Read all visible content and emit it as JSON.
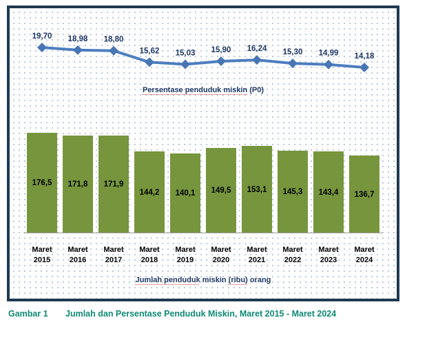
{
  "figure": {
    "caption_label": "Gambar 1",
    "caption_title": "Jumlah dan Persentase Penduduk Miskin, Maret 2015 - Maret 2024"
  },
  "line_title": {
    "segments": [
      {
        "text": "Persentase penduduk miskin",
        "underlined": true
      },
      {
        "text": " (P0)",
        "underlined": false
      }
    ]
  },
  "bar_title": {
    "segments": [
      {
        "text": "Jumlah penduduk",
        "underlined": true
      },
      {
        "text": " miskin ",
        "underlined": false
      },
      {
        "text": "(ribu)",
        "underlined": true
      },
      {
        "text": " orang",
        "underlined": false
      }
    ]
  },
  "colors": {
    "frame_border": "#1f3a52",
    "dot_grid": "#b7c9e2",
    "line_stroke": "#4c7ebf",
    "marker_fill": "#4876b4",
    "line_value_label": "#1f3864",
    "bar_fill": "#76953d",
    "bar_value_label": "#000000",
    "axis_line": "#9a9a9a",
    "caption_text": "#0e8a74"
  },
  "chart_data": [
    {
      "type": "line",
      "title": "Persentase penduduk miskin (P0)",
      "categories": [
        "Maret 2015",
        "Maret 2016",
        "Maret 2017",
        "Maret 2018",
        "Maret 2019",
        "Maret 2020",
        "Maret 2021",
        "Maret 2022",
        "Maret 2023",
        "Maret 2024"
      ],
      "values": [
        19.7,
        18.98,
        18.8,
        15.62,
        15.03,
        15.9,
        16.24,
        15.3,
        14.99,
        14.18
      ],
      "value_labels": [
        "19,70",
        "18,98",
        "18,80",
        "15,62",
        "15,03",
        "15,90",
        "16,24",
        "15,30",
        "14,99",
        "14,18"
      ],
      "marker": "diamond",
      "grid": false,
      "legend_position": "none",
      "ylim": [
        14,
        20
      ]
    },
    {
      "type": "bar",
      "title": "Jumlah penduduk miskin (ribu) orang",
      "categories": [
        "Maret 2015",
        "Maret 2016",
        "Maret 2017",
        "Maret 2018",
        "Maret 2019",
        "Maret 2020",
        "Maret 2021",
        "Maret 2022",
        "Maret 2023",
        "Maret 2024"
      ],
      "values": [
        176.5,
        171.8,
        171.9,
        144.2,
        140.1,
        149.5,
        153.1,
        145.3,
        143.4,
        136.7
      ],
      "value_labels": [
        "176,5",
        "171,8",
        "171,9",
        "144,2",
        "140,1",
        "149,5",
        "153,1",
        "145,3",
        "143,4",
        "136,7"
      ],
      "grid": false,
      "legend_position": "none",
      "ylim": [
        0,
        185
      ]
    }
  ]
}
